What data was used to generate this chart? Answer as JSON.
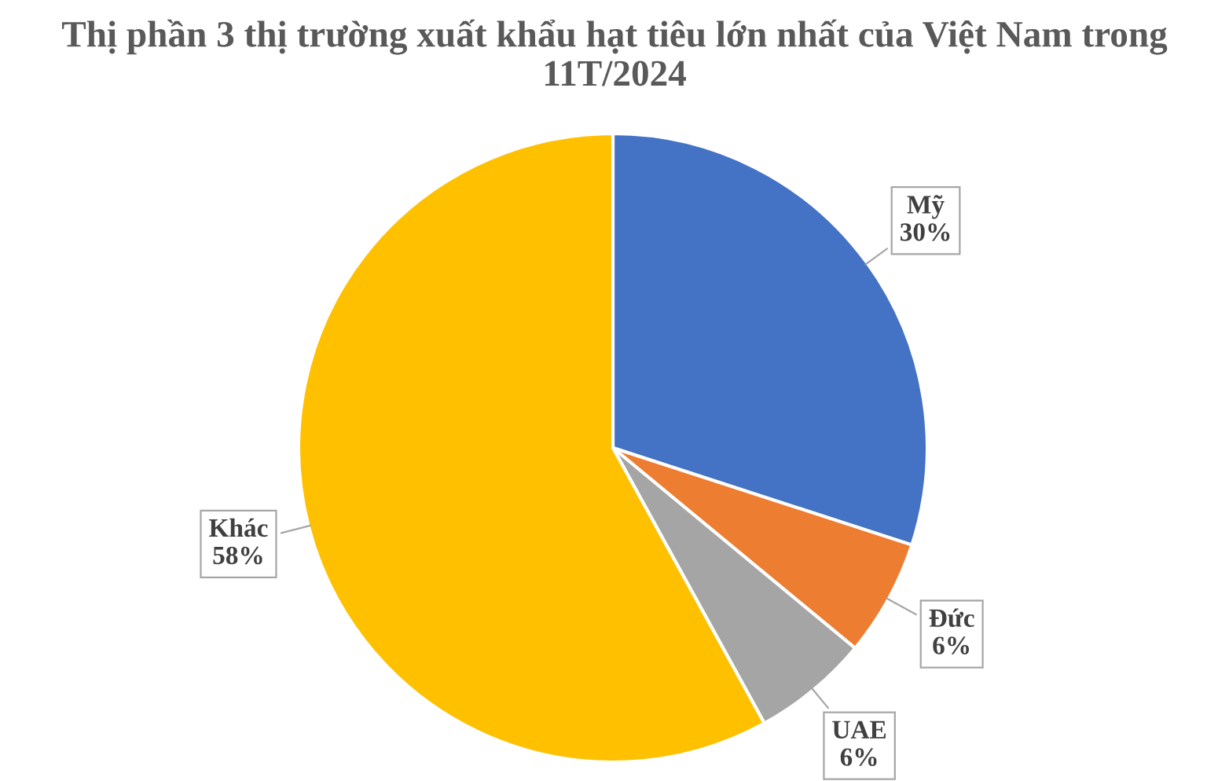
{
  "chart_data": {
    "type": "pie",
    "title": "Thị phần 3 thị trường xuất khẩu hạt tiêu lớn nhất của Việt Nam trong 11T/2024",
    "categories": [
      "Mỹ",
      "Đức",
      "UAE",
      "Khác"
    ],
    "values": [
      30,
      6,
      6,
      58
    ],
    "value_labels": [
      "30%",
      "6%",
      "6%",
      "58%"
    ],
    "colors": [
      "#4472c4",
      "#ed7d31",
      "#a5a5a5",
      "#ffc000"
    ],
    "legend": false
  }
}
